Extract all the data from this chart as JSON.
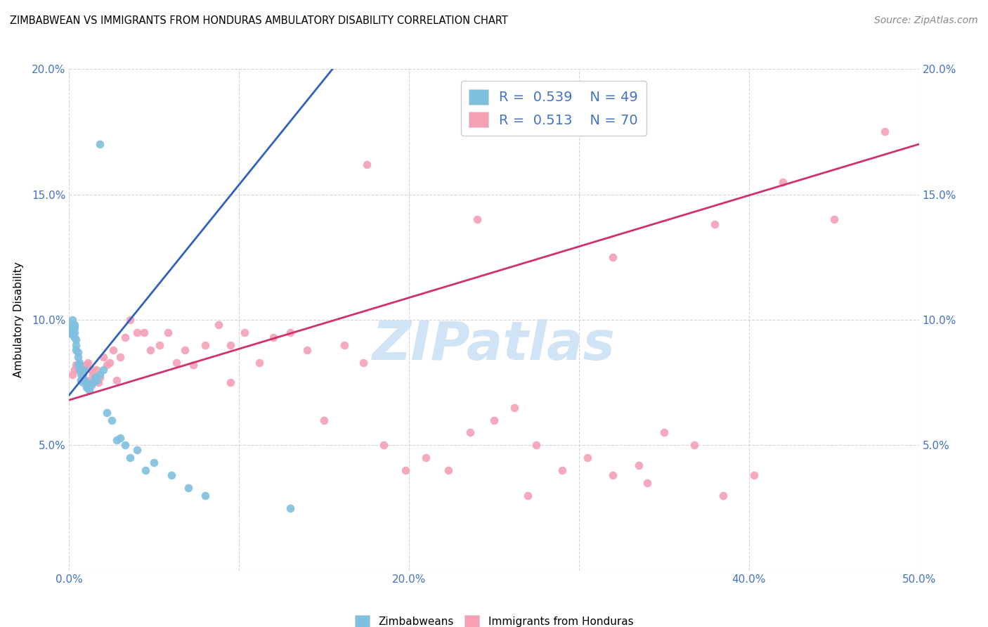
{
  "title": "ZIMBABWEAN VS IMMIGRANTS FROM HONDURAS AMBULATORY DISABILITY CORRELATION CHART",
  "source": "Source: ZipAtlas.com",
  "ylabel": "Ambulatory Disability",
  "xlim": [
    0.0,
    0.5
  ],
  "ylim": [
    0.0,
    0.2
  ],
  "xtick_vals": [
    0.0,
    0.1,
    0.2,
    0.3,
    0.4,
    0.5
  ],
  "ytick_vals": [
    0.0,
    0.05,
    0.1,
    0.15,
    0.2
  ],
  "xticklabels": [
    "0.0%",
    "",
    "20.0%",
    "",
    "40.0%",
    "50.0%"
  ],
  "yticklabels_left": [
    "",
    "5.0%",
    "10.0%",
    "15.0%",
    "20.0%"
  ],
  "yticklabels_right": [
    "",
    "5.0%",
    "10.0%",
    "15.0%",
    "20.0%"
  ],
  "legend_R1": "0.539",
  "legend_N1": "49",
  "legend_R2": "0.513",
  "legend_N2": "70",
  "blue_color": "#7fbfdf",
  "pink_color": "#f4a0b5",
  "blue_line_color": "#3060c0",
  "pink_line_color": "#d03070",
  "blue_line_x": [
    0.0,
    0.155
  ],
  "blue_line_y": [
    0.07,
    0.2
  ],
  "pink_line_x": [
    0.0,
    0.5
  ],
  "pink_line_y": [
    0.068,
    0.17
  ],
  "watermark": "ZIPatlas",
  "watermark_color": "#d0e4f5",
  "blue_scatter_x": [
    0.001,
    0.001,
    0.001,
    0.002,
    0.002,
    0.002,
    0.002,
    0.003,
    0.003,
    0.003,
    0.003,
    0.004,
    0.004,
    0.004,
    0.005,
    0.005,
    0.005,
    0.006,
    0.006,
    0.007,
    0.007,
    0.008,
    0.008,
    0.009,
    0.009,
    0.01,
    0.01,
    0.011,
    0.012,
    0.013,
    0.014,
    0.015,
    0.016,
    0.018,
    0.02,
    0.022,
    0.025,
    0.028,
    0.03,
    0.033,
    0.036,
    0.04,
    0.045,
    0.05,
    0.06,
    0.07,
    0.08,
    0.13,
    0.018
  ],
  "blue_scatter_y": [
    0.097,
    0.098,
    0.095,
    0.097,
    0.094,
    0.1,
    0.096,
    0.097,
    0.095,
    0.098,
    0.093,
    0.092,
    0.09,
    0.088,
    0.087,
    0.085,
    0.082,
    0.083,
    0.08,
    0.078,
    0.076,
    0.077,
    0.075,
    0.076,
    0.08,
    0.075,
    0.073,
    0.073,
    0.072,
    0.074,
    0.075,
    0.077,
    0.076,
    0.078,
    0.08,
    0.063,
    0.06,
    0.052,
    0.053,
    0.05,
    0.045,
    0.048,
    0.04,
    0.043,
    0.038,
    0.033,
    0.03,
    0.025,
    0.17
  ],
  "pink_scatter_x": [
    0.002,
    0.003,
    0.004,
    0.005,
    0.006,
    0.007,
    0.008,
    0.009,
    0.01,
    0.011,
    0.012,
    0.013,
    0.014,
    0.015,
    0.016,
    0.017,
    0.018,
    0.02,
    0.022,
    0.024,
    0.026,
    0.028,
    0.03,
    0.033,
    0.036,
    0.04,
    0.044,
    0.048,
    0.053,
    0.058,
    0.063,
    0.068,
    0.073,
    0.08,
    0.088,
    0.095,
    0.103,
    0.112,
    0.12,
    0.13,
    0.14,
    0.15,
    0.162,
    0.173,
    0.185,
    0.198,
    0.21,
    0.223,
    0.236,
    0.25,
    0.262,
    0.275,
    0.29,
    0.305,
    0.32,
    0.335,
    0.35,
    0.368,
    0.385,
    0.403,
    0.175,
    0.24,
    0.32,
    0.38,
    0.42,
    0.45,
    0.48,
    0.095,
    0.27,
    0.34
  ],
  "pink_scatter_y": [
    0.078,
    0.08,
    0.082,
    0.08,
    0.082,
    0.076,
    0.078,
    0.08,
    0.082,
    0.083,
    0.076,
    0.08,
    0.078,
    0.076,
    0.08,
    0.075,
    0.077,
    0.085,
    0.082,
    0.083,
    0.088,
    0.076,
    0.085,
    0.093,
    0.1,
    0.095,
    0.095,
    0.088,
    0.09,
    0.095,
    0.083,
    0.088,
    0.082,
    0.09,
    0.098,
    0.09,
    0.095,
    0.083,
    0.093,
    0.095,
    0.088,
    0.06,
    0.09,
    0.083,
    0.05,
    0.04,
    0.045,
    0.04,
    0.055,
    0.06,
    0.065,
    0.05,
    0.04,
    0.045,
    0.038,
    0.042,
    0.055,
    0.05,
    0.03,
    0.038,
    0.162,
    0.14,
    0.125,
    0.138,
    0.155,
    0.14,
    0.175,
    0.075,
    0.03,
    0.035
  ],
  "background_color": "#ffffff",
  "grid_color": "#d0d0d0"
}
